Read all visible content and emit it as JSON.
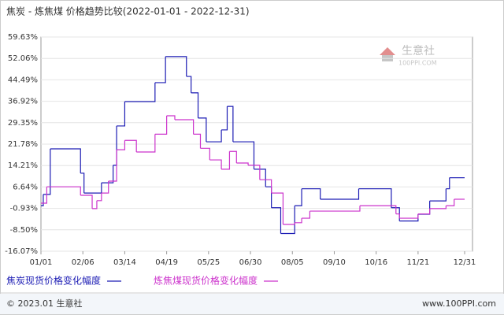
{
  "chart_data": {
    "type": "line",
    "title": "焦炭 - 炼焦煤 价格趋势比较(2022-01-01 - 2022-12-31)",
    "step": true,
    "grid": true,
    "xlim": [
      "01/01",
      "12/31"
    ],
    "xticks": [
      "01/01",
      "02/06",
      "03/14",
      "04/19",
      "05/25",
      "06/30",
      "08/05",
      "09/10",
      "10/16",
      "11/21",
      "12/31"
    ],
    "ylim": [
      -16.07,
      59.63
    ],
    "yticks": [
      {
        "value": -16.07,
        "label": "-16.07%"
      },
      {
        "value": -8.5,
        "label": "-8.50%"
      },
      {
        "value": -0.93,
        "label": "-0.93%"
      },
      {
        "value": 6.64,
        "label": "6.64%"
      },
      {
        "value": 14.21,
        "label": "14.21%"
      },
      {
        "value": 21.78,
        "label": "21.78%"
      },
      {
        "value": 29.35,
        "label": "29.35%"
      },
      {
        "value": 36.92,
        "label": "36.92%"
      },
      {
        "value": 44.49,
        "label": "44.49%"
      },
      {
        "value": 52.06,
        "label": "52.06%"
      },
      {
        "value": 59.63,
        "label": "59.63%"
      }
    ],
    "series": [
      {
        "name": "焦炭现货价格变化幅度",
        "color": "#1c1cb4",
        "x": [
          "01/01",
          "01/03",
          "01/09",
          "02/04",
          "02/07",
          "02/22",
          "03/04",
          "03/07",
          "03/14",
          "04/09",
          "04/18",
          "05/06",
          "05/10",
          "05/16",
          "05/23",
          "06/05",
          "06/10",
          "06/15",
          "07/03",
          "07/13",
          "07/18",
          "07/26",
          "08/07",
          "08/13",
          "08/29",
          "10/01",
          "10/29",
          "11/05",
          "11/21",
          "12/01",
          "12/15",
          "12/18",
          "12/31"
        ],
        "values": [
          0,
          4,
          20.1,
          11.5,
          4.5,
          8.1,
          14.3,
          28.2,
          36.8,
          43.5,
          52.7,
          45.7,
          39.9,
          31,
          22.6,
          26.8,
          35.1,
          22.6,
          12.9,
          6.7,
          -0.7,
          -9.8,
          0,
          6,
          2.3,
          6,
          -0.7,
          -5.4,
          -3,
          1.7,
          6,
          9.9,
          9.9
        ]
      },
      {
        "name": "炼焦煤现货价格变化幅度",
        "color": "#cc33cc",
        "x": [
          "01/01",
          "01/06",
          "02/04",
          "02/14",
          "02/18",
          "02/22",
          "02/28",
          "03/07",
          "03/14",
          "03/24",
          "04/09",
          "04/19",
          "04/26",
          "05/12",
          "05/18",
          "05/26",
          "06/05",
          "06/12",
          "06/18",
          "06/28",
          "07/08",
          "07/18",
          "07/28",
          "08/07",
          "08/13",
          "08/20",
          "10/02",
          "11/02",
          "11/05",
          "11/21",
          "12/01",
          "12/15",
          "12/22",
          "12/31"
        ],
        "values": [
          0.9,
          6.7,
          3.7,
          -1,
          1.8,
          4.5,
          8.7,
          19.8,
          23.1,
          19,
          25.3,
          31.8,
          30.4,
          25.3,
          20.3,
          16.2,
          12.9,
          19.2,
          15.1,
          14.3,
          9.2,
          4.5,
          -6.6,
          -6,
          -4.4,
          -1.9,
          0,
          -2.9,
          -4.4,
          -2.9,
          -1,
          0,
          2.3,
          2.3
        ]
      }
    ]
  },
  "watermark": {
    "name": "生意社",
    "site": "100PPI.COM"
  },
  "footer": {
    "copyright": "© 2023.01 生意社",
    "url": "www.100PPI.com"
  }
}
